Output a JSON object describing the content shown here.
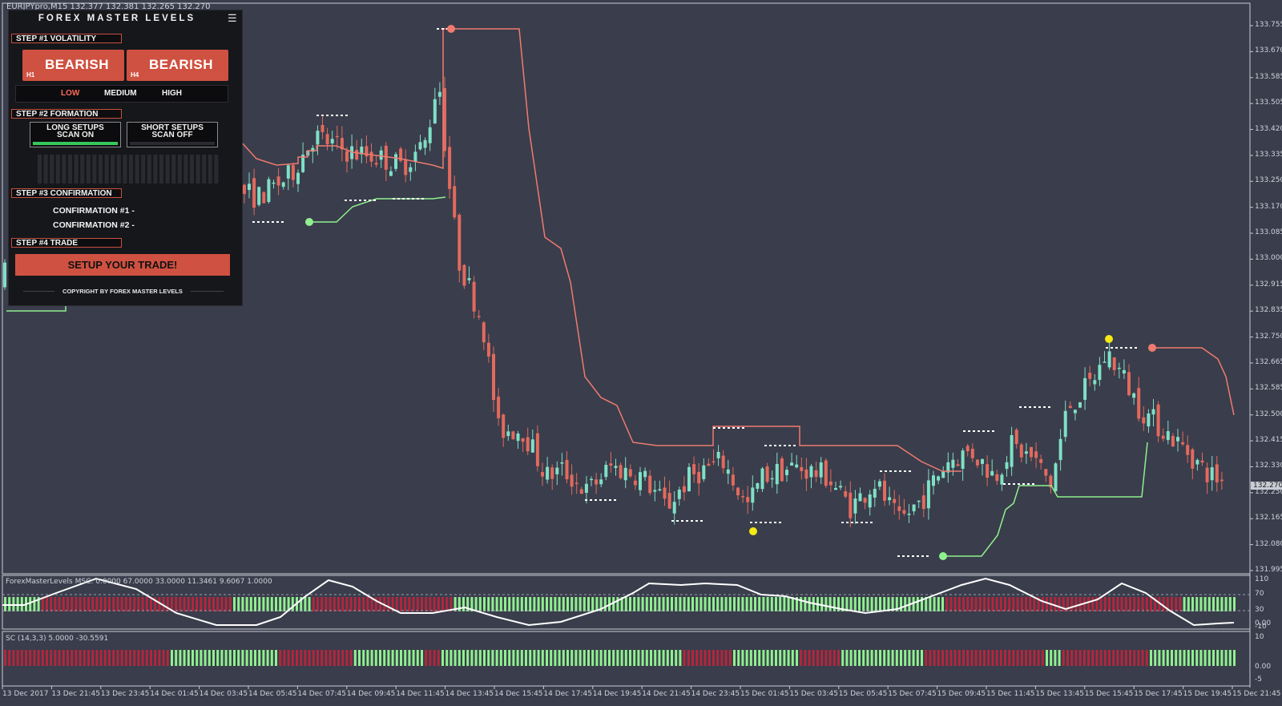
{
  "header": {
    "symbol_line": "EURJPYpro,M15  132.377 132.381 132.265 132.270"
  },
  "price_axis": {
    "labels": [
      "133.755",
      "133.670",
      "133.585",
      "133.505",
      "133.420",
      "133.335",
      "133.250",
      "133.170",
      "133.085",
      "133.000",
      "132.915",
      "132.835",
      "132.750",
      "132.665",
      "132.585",
      "132.500",
      "132.415",
      "132.330",
      "132.250",
      "132.165",
      "132.080",
      "131.995"
    ],
    "current_price": "132.270"
  },
  "time_axis": {
    "labels": [
      "13 Dec 2017",
      "13 Dec 21:45",
      "13 Dec 23:45",
      "14 Dec 01:45",
      "14 Dec 03:45",
      "14 Dec 05:45",
      "14 Dec 07:45",
      "14 Dec 09:45",
      "14 Dec 11:45",
      "14 Dec 13:45",
      "14 Dec 15:45",
      "14 Dec 17:45",
      "14 Dec 19:45",
      "14 Dec 21:45",
      "14 Dec 23:45",
      "15 Dec 01:45",
      "15 Dec 03:45",
      "15 Dec 05:45",
      "15 Dec 07:45",
      "15 Dec 09:45",
      "15 Dec 11:45",
      "15 Dec 13:45",
      "15 Dec 15:45",
      "15 Dec 17:45",
      "15 Dec 19:45",
      "15 Dec 21:45"
    ]
  },
  "indicator1": {
    "title": "ForexMasterLevels  MSC: 0.0000 67.0000 33.0000 11.3461 9.6067 1.0000",
    "axis": [
      "110",
      "70",
      "30",
      "0.00",
      "-10"
    ]
  },
  "indicator2": {
    "title": "SC (14,3,3) 5.0000 -30.5591",
    "axis": [
      "10",
      "0.00",
      "-5"
    ]
  },
  "panel": {
    "title": "FOREX MASTER LEVELS",
    "step1": "STEP #1 VOLATILITY",
    "bear_h1": {
      "label": "BEARISH",
      "tf": "H1"
    },
    "bear_h4": {
      "label": "BEARISH",
      "tf": "H4"
    },
    "vol_low": "LOW",
    "vol_medium": "MEDIUM",
    "vol_high": "HIGH",
    "step2": "STEP #2 FORMATION",
    "long_scan": "LONG SETUPS SCAN ON",
    "short_scan": "SHORT SETUPS SCAN OFF",
    "step3": "STEP #3 CONFIRMATION",
    "conf1": "CONFIRMATION #1 -",
    "conf2": "CONFIRMATION #2 -",
    "step4": "STEP #4 TRADE",
    "trade_button": "SETUP YOUR TRADE!",
    "copyright": "COPYRIGHT BY FOREX MASTER LEVELS"
  },
  "colors": {
    "background": "#3a3d4b",
    "bull": "#7fe0c6",
    "bear": "#e26a5e",
    "support": "#8ff08f",
    "resistance": "#ee7b70",
    "accent_red": "#cf5141",
    "low_text": "#ff6b5a"
  }
}
